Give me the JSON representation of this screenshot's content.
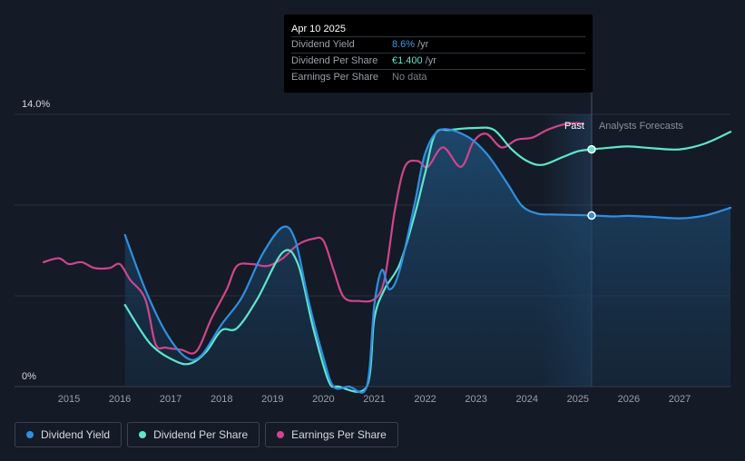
{
  "tooltip": {
    "date": "Apr 10 2025",
    "rows": [
      {
        "label": "Dividend Yield",
        "value": "8.6%",
        "unit": "/yr",
        "color": "#3a9be8"
      },
      {
        "label": "Dividend Per Share",
        "value": "€1.400",
        "unit": "/yr",
        "color": "#5ee6cd"
      },
      {
        "label": "Earnings Per Share",
        "value": "No data",
        "unit": "",
        "color": "#7a808a"
      }
    ]
  },
  "legend": [
    {
      "label": "Dividend Yield",
      "color": "#2f8fe0"
    },
    {
      "label": "Dividend Per Share",
      "color": "#5ee6cd"
    },
    {
      "label": "Earnings Per Share",
      "color": "#d0458c"
    }
  ],
  "chart_data": {
    "type": "line",
    "title": "",
    "xlabel": "",
    "ylabel": "",
    "xlim": [
      2014.5,
      2028.0
    ],
    "ylim": [
      0,
      14.0
    ],
    "y_tick_labels": [
      "14.0%",
      "0%"
    ],
    "x_ticks": [
      2015,
      2016,
      2017,
      2018,
      2019,
      2020,
      2021,
      2022,
      2023,
      2024,
      2025,
      2026,
      2027
    ],
    "past_label": "Past",
    "forecast_label": "Analysts Forecasts",
    "forecast_start": 2025.27,
    "series": [
      {
        "name": "Dividend Yield",
        "color": "#2f8fe0",
        "points": [
          [
            2016.1,
            7.8
          ],
          [
            2016.5,
            5.0
          ],
          [
            2016.9,
            2.8
          ],
          [
            2017.3,
            1.5
          ],
          [
            2017.6,
            1.6
          ],
          [
            2018.0,
            3.2
          ],
          [
            2018.4,
            4.6
          ],
          [
            2018.8,
            6.8
          ],
          [
            2019.2,
            8.2
          ],
          [
            2019.45,
            7.5
          ],
          [
            2019.7,
            4.5
          ],
          [
            2020.0,
            1.5
          ],
          [
            2020.2,
            0.0
          ],
          [
            2020.5,
            0.0
          ],
          [
            2020.85,
            0.0
          ],
          [
            2021.0,
            4.2
          ],
          [
            2021.15,
            6.0
          ],
          [
            2021.3,
            5.0
          ],
          [
            2021.5,
            6.0
          ],
          [
            2021.8,
            9.5
          ],
          [
            2022.0,
            12.0
          ],
          [
            2022.3,
            13.2
          ],
          [
            2022.8,
            12.9
          ],
          [
            2023.2,
            12.0
          ],
          [
            2023.6,
            10.5
          ],
          [
            2023.9,
            9.3
          ],
          [
            2024.2,
            8.9
          ],
          [
            2024.5,
            8.85
          ],
          [
            2025.0,
            8.82
          ],
          [
            2025.27,
            8.8
          ],
          [
            2025.7,
            8.75
          ],
          [
            2026.0,
            8.78
          ],
          [
            2026.5,
            8.72
          ],
          [
            2027.0,
            8.65
          ],
          [
            2027.5,
            8.8
          ],
          [
            2028.0,
            9.2
          ]
        ]
      },
      {
        "name": "Dividend Per Share",
        "color": "#5ee6cd",
        "points": [
          [
            2016.1,
            4.2
          ],
          [
            2016.6,
            2.2
          ],
          [
            2017.1,
            1.3
          ],
          [
            2017.4,
            1.2
          ],
          [
            2017.7,
            1.8
          ],
          [
            2018.0,
            2.9
          ],
          [
            2018.3,
            3.0
          ],
          [
            2018.7,
            4.5
          ],
          [
            2019.2,
            6.9
          ],
          [
            2019.5,
            6.3
          ],
          [
            2019.8,
            3.0
          ],
          [
            2020.1,
            0.3
          ],
          [
            2020.3,
            0.0
          ],
          [
            2020.85,
            0.0
          ],
          [
            2021.0,
            3.5
          ],
          [
            2021.2,
            5.0
          ],
          [
            2021.5,
            6.3
          ],
          [
            2021.8,
            8.9
          ],
          [
            2022.0,
            11.0
          ],
          [
            2022.2,
            13.0
          ],
          [
            2022.5,
            13.2
          ],
          [
            2023.0,
            13.3
          ],
          [
            2023.35,
            13.2
          ],
          [
            2023.7,
            12.2
          ],
          [
            2024.0,
            11.6
          ],
          [
            2024.3,
            11.4
          ],
          [
            2024.7,
            11.8
          ],
          [
            2025.0,
            12.1
          ],
          [
            2025.27,
            12.2
          ],
          [
            2025.7,
            12.3
          ],
          [
            2026.0,
            12.35
          ],
          [
            2026.5,
            12.25
          ],
          [
            2027.0,
            12.2
          ],
          [
            2027.5,
            12.5
          ],
          [
            2028.0,
            13.1
          ]
        ]
      },
      {
        "name": "Earnings Per Share",
        "color": "#d0458c",
        "points": [
          [
            2014.5,
            6.4
          ],
          [
            2014.8,
            6.6
          ],
          [
            2015.0,
            6.3
          ],
          [
            2015.25,
            6.4
          ],
          [
            2015.5,
            6.1
          ],
          [
            2015.8,
            6.1
          ],
          [
            2016.0,
            6.3
          ],
          [
            2016.2,
            5.5
          ],
          [
            2016.5,
            4.5
          ],
          [
            2016.7,
            2.2
          ],
          [
            2016.9,
            2.0
          ],
          [
            2017.2,
            1.9
          ],
          [
            2017.5,
            1.8
          ],
          [
            2017.8,
            3.5
          ],
          [
            2018.1,
            5.0
          ],
          [
            2018.3,
            6.2
          ],
          [
            2018.6,
            6.3
          ],
          [
            2018.9,
            6.2
          ],
          [
            2019.2,
            6.6
          ],
          [
            2019.5,
            7.3
          ],
          [
            2019.8,
            7.6
          ],
          [
            2020.0,
            7.5
          ],
          [
            2020.2,
            6.0
          ],
          [
            2020.4,
            4.6
          ],
          [
            2020.7,
            4.4
          ],
          [
            2021.0,
            4.5
          ],
          [
            2021.2,
            5.5
          ],
          [
            2021.4,
            9.0
          ],
          [
            2021.6,
            11.3
          ],
          [
            2021.85,
            11.6
          ],
          [
            2022.05,
            11.3
          ],
          [
            2022.35,
            12.3
          ],
          [
            2022.7,
            11.3
          ],
          [
            2022.95,
            12.6
          ],
          [
            2023.2,
            13.0
          ],
          [
            2023.5,
            12.3
          ],
          [
            2023.8,
            12.7
          ],
          [
            2024.1,
            12.8
          ],
          [
            2024.4,
            13.2
          ],
          [
            2024.75,
            13.5
          ],
          [
            2025.0,
            13.55
          ],
          [
            2025.1,
            13.5
          ]
        ]
      }
    ]
  }
}
